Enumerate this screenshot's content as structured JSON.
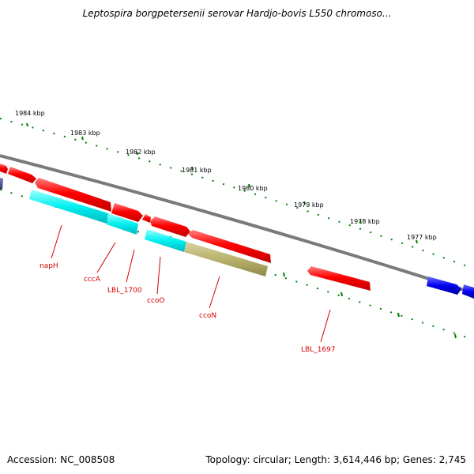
{
  "title": "Leptospira borgpetersenii serovar Hardjo-bovis L550 chromoso...",
  "accession": "Accession: NC_008508",
  "topology": "Topology: circular; Length: 3,614,446 bp; Genes: 2,745",
  "ruler": {
    "labels": [
      "1984 kbp",
      "1983 kbp",
      "1982 kbp",
      "1981 kbp",
      "1980 kbp",
      "1979 kbp",
      "1978 kbp",
      "1977 kbp"
    ]
  },
  "genes": [
    {
      "name": "napH"
    },
    {
      "name": "cccA"
    },
    {
      "name": "LBL_1700"
    },
    {
      "name": "ccoO"
    },
    {
      "name": "ccoN"
    },
    {
      "name": "LBL_1697"
    }
  ],
  "colors": {
    "forward_gene": "#ff0000",
    "cyan_gene": "#00e5ee",
    "olive_gene": "#b5b06a",
    "blue_gene": "#0000ee",
    "backbone": "#808080",
    "tick": "#008000",
    "label": "#d40000"
  }
}
